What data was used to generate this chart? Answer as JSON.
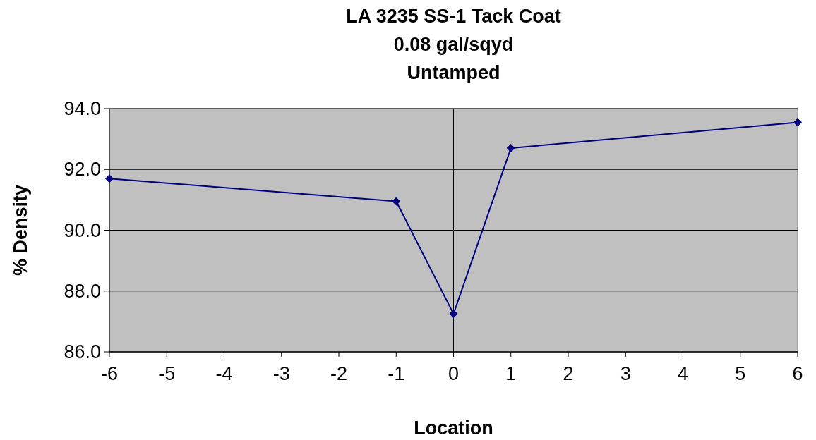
{
  "chart_data": {
    "type": "line",
    "title": "LA 3235 SS-1 Tack Coat\n0.08 gal/sqyd\nUntamped",
    "xlabel": "Location",
    "ylabel": "% Density",
    "x": [
      -6,
      -1,
      0,
      1,
      6
    ],
    "series": [
      {
        "color": "#000080",
        "values": [
          91.7,
          90.95,
          87.25,
          92.7,
          93.55
        ]
      }
    ],
    "xlim": [
      -6,
      6
    ],
    "xticks": [
      -6,
      -5,
      -4,
      -3,
      -2,
      -1,
      0,
      1,
      2,
      3,
      4,
      5,
      6
    ],
    "ylim": [
      86,
      94
    ],
    "yticks": [
      {
        "value": 86,
        "label": "86.0"
      },
      {
        "value": 88,
        "label": "88.0"
      },
      {
        "value": 90,
        "label": "90.0"
      },
      {
        "value": 92,
        "label": "92.0"
      },
      {
        "value": 94,
        "label": "94.0"
      }
    ],
    "ref_lines": [
      {
        "axis": "x",
        "value": 0,
        "color": "#000000"
      }
    ],
    "grid": "y",
    "marker": "diamond"
  }
}
